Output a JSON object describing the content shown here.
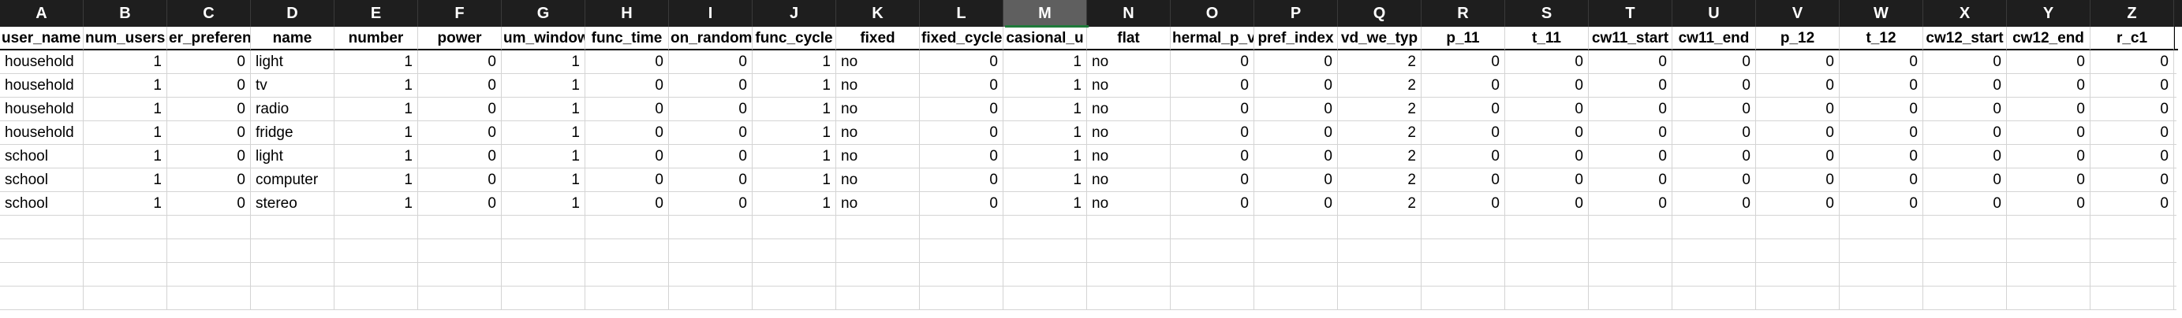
{
  "column_letters": [
    "A",
    "B",
    "C",
    "D",
    "E",
    "F",
    "G",
    "H",
    "I",
    "J",
    "K",
    "L",
    "M",
    "N",
    "O",
    "P",
    "Q",
    "R",
    "S",
    "T",
    "U",
    "V",
    "W",
    "X",
    "Y",
    "Z"
  ],
  "selected_column": "M",
  "headers": [
    "user_name",
    "num_users",
    "er_preferen",
    "name",
    "number",
    "power",
    "um_window",
    "func_time",
    "on_random",
    "func_cycle",
    "fixed",
    "fixed_cycle",
    "casional_u",
    "flat",
    "hermal_p_v",
    "pref_index",
    "vd_we_typ",
    "p_11",
    "t_11",
    "cw11_start",
    "cw11_end",
    "p_12",
    "t_12",
    "cw12_start",
    "cw12_end",
    "r_c1"
  ],
  "column_types": [
    "txt",
    "num",
    "num",
    "txt",
    "num",
    "num",
    "num",
    "num",
    "num",
    "num",
    "txt",
    "num",
    "num",
    "txt",
    "num",
    "num",
    "num",
    "num",
    "num",
    "num",
    "num",
    "num",
    "num",
    "num",
    "num",
    "num"
  ],
  "rows": [
    [
      "household",
      "1",
      "0",
      "light",
      "1",
      "0",
      "1",
      "0",
      "0",
      "1",
      "no",
      "0",
      "1",
      "no",
      "0",
      "0",
      "2",
      "0",
      "0",
      "0",
      "0",
      "0",
      "0",
      "0",
      "0",
      "0"
    ],
    [
      "household",
      "1",
      "0",
      "tv",
      "1",
      "0",
      "1",
      "0",
      "0",
      "1",
      "no",
      "0",
      "1",
      "no",
      "0",
      "0",
      "2",
      "0",
      "0",
      "0",
      "0",
      "0",
      "0",
      "0",
      "0",
      "0"
    ],
    [
      "household",
      "1",
      "0",
      "radio",
      "1",
      "0",
      "1",
      "0",
      "0",
      "1",
      "no",
      "0",
      "1",
      "no",
      "0",
      "0",
      "2",
      "0",
      "0",
      "0",
      "0",
      "0",
      "0",
      "0",
      "0",
      "0"
    ],
    [
      "household",
      "1",
      "0",
      "fridge",
      "1",
      "0",
      "1",
      "0",
      "0",
      "1",
      "no",
      "0",
      "1",
      "no",
      "0",
      "0",
      "2",
      "0",
      "0",
      "0",
      "0",
      "0",
      "0",
      "0",
      "0",
      "0"
    ],
    [
      "school",
      "1",
      "0",
      "light",
      "1",
      "0",
      "1",
      "0",
      "0",
      "1",
      "no",
      "0",
      "1",
      "no",
      "0",
      "0",
      "2",
      "0",
      "0",
      "0",
      "0",
      "0",
      "0",
      "0",
      "0",
      "0"
    ],
    [
      "school",
      "1",
      "0",
      "computer",
      "1",
      "0",
      "1",
      "0",
      "0",
      "1",
      "no",
      "0",
      "1",
      "no",
      "0",
      "0",
      "2",
      "0",
      "0",
      "0",
      "0",
      "0",
      "0",
      "0",
      "0",
      "0"
    ],
    [
      "school",
      "1",
      "0",
      "stereo",
      "1",
      "0",
      "1",
      "0",
      "0",
      "1",
      "no",
      "0",
      "1",
      "no",
      "0",
      "0",
      "2",
      "0",
      "0",
      "0",
      "0",
      "0",
      "0",
      "0",
      "0",
      "0"
    ]
  ],
  "empty_row_count": 4,
  "colors": {
    "letter_bar_bg": "#1e1e1e",
    "selected_letter_bg": "#5f5f5f",
    "gridline": "#d4d4d4",
    "selection_accent": "#1f7a3a"
  }
}
